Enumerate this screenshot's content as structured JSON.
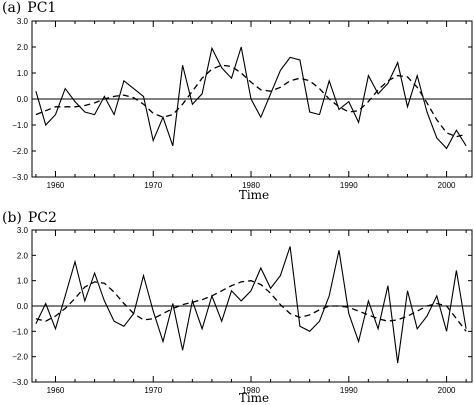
{
  "chart_data": [
    {
      "type": "line",
      "panel_label": "(a)",
      "title": "PC1",
      "xlabel": "Time",
      "ylabel": "",
      "xlim": [
        1957.6,
        2002.6
      ],
      "ylim": [
        -3.0,
        3.0
      ],
      "x_ticks": [
        1960,
        1970,
        1980,
        1990,
        2000
      ],
      "y_ticks": [
        -3.0,
        -2.0,
        -1.0,
        0.0,
        1.0,
        2.0,
        3.0
      ],
      "y_tick_labels": [
        "−3.0",
        "−2.0",
        "−1.0",
        "0.0",
        "1.0",
        "2.0",
        "3.0"
      ],
      "reference_line": 0.0,
      "series": [
        {
          "style": "solid",
          "x": [
            1958,
            1959,
            1960,
            1961,
            1962,
            1963,
            1964,
            1965,
            1966,
            1967,
            1968,
            1969,
            1970,
            1971,
            1972,
            1973,
            1974,
            1975,
            1976,
            1977,
            1978,
            1979,
            1980,
            1981,
            1982,
            1983,
            1984,
            1985,
            1986,
            1987,
            1988,
            1989,
            1990,
            1991,
            1992,
            1993,
            1994,
            1995,
            1996,
            1997,
            1998,
            1999,
            2000,
            2001,
            2002
          ],
          "values": [
            0.3,
            -1.0,
            -0.6,
            0.4,
            -0.1,
            -0.5,
            -0.6,
            0.1,
            -0.6,
            0.7,
            0.4,
            0.1,
            -1.6,
            -0.7,
            -1.8,
            1.3,
            -0.2,
            0.2,
            1.95,
            1.2,
            0.8,
            2.0,
            0.0,
            -0.7,
            0.2,
            1.1,
            1.6,
            1.5,
            -0.5,
            -0.6,
            0.7,
            -0.4,
            -0.1,
            -0.9,
            0.9,
            0.2,
            0.6,
            1.4,
            -0.3,
            0.9,
            -0.5,
            -1.5,
            -1.9,
            -1.2,
            -1.8
          ]
        },
        {
          "style": "dashed",
          "x": [
            1958,
            1959,
            1960,
            1961,
            1962,
            1963,
            1964,
            1965,
            1966,
            1967,
            1968,
            1969,
            1970,
            1971,
            1972,
            1973,
            1974,
            1975,
            1976,
            1977,
            1978,
            1979,
            1980,
            1981,
            1982,
            1983,
            1984,
            1985,
            1986,
            1987,
            1988,
            1989,
            1990,
            1991,
            1992,
            1993,
            1994,
            1995,
            1996,
            1997,
            1998,
            1999,
            2000,
            2001,
            2002
          ],
          "values": [
            -0.6,
            -0.45,
            -0.3,
            -0.3,
            -0.3,
            -0.25,
            -0.15,
            0.0,
            0.1,
            0.15,
            0.05,
            -0.2,
            -0.55,
            -0.7,
            -0.6,
            -0.2,
            0.3,
            0.8,
            1.15,
            1.3,
            1.25,
            1.0,
            0.65,
            0.35,
            0.3,
            0.45,
            0.7,
            0.8,
            0.7,
            0.4,
            0.0,
            -0.3,
            -0.5,
            -0.45,
            -0.1,
            0.35,
            0.7,
            0.9,
            0.85,
            0.45,
            -0.15,
            -0.8,
            -1.3,
            -1.45,
            -1.35
          ]
        }
      ]
    },
    {
      "type": "line",
      "panel_label": "(b)",
      "title": "PC2",
      "xlabel": "Time",
      "ylabel": "",
      "xlim": [
        1957.6,
        2002.6
      ],
      "ylim": [
        -3.0,
        3.0
      ],
      "x_ticks": [
        1960,
        1970,
        1980,
        1990,
        2000
      ],
      "y_ticks": [
        -3.0,
        -2.0,
        -1.0,
        0.0,
        1.0,
        2.0,
        3.0
      ],
      "y_tick_labels": [
        "−3.0",
        "−2.0",
        "−1.0",
        "0.0",
        "1.0",
        "2.0",
        "3.0"
      ],
      "reference_line": 0.0,
      "series": [
        {
          "style": "solid",
          "x": [
            1958,
            1959,
            1960,
            1961,
            1962,
            1963,
            1964,
            1965,
            1966,
            1967,
            1968,
            1969,
            1970,
            1971,
            1972,
            1973,
            1974,
            1975,
            1976,
            1977,
            1978,
            1979,
            1980,
            1981,
            1982,
            1983,
            1984,
            1985,
            1986,
            1987,
            1988,
            1989,
            1990,
            1991,
            1992,
            1993,
            1994,
            1995,
            1996,
            1997,
            1998,
            1999,
            2000,
            2001,
            2002
          ],
          "values": [
            -0.7,
            0.1,
            -0.9,
            0.4,
            1.75,
            0.2,
            1.3,
            0.2,
            -0.6,
            -0.8,
            -0.3,
            1.2,
            -0.2,
            -1.4,
            0.1,
            -1.75,
            0.2,
            -0.9,
            0.4,
            -0.6,
            0.6,
            0.2,
            0.6,
            1.5,
            0.7,
            1.2,
            2.35,
            -0.8,
            -1.0,
            -0.6,
            0.4,
            2.2,
            -0.3,
            -1.4,
            0.2,
            -0.9,
            0.8,
            -2.25,
            0.6,
            -0.9,
            -0.4,
            0.4,
            -1.0,
            1.4,
            -0.9
          ]
        },
        {
          "style": "dashed",
          "x": [
            1958,
            1959,
            1960,
            1961,
            1962,
            1963,
            1964,
            1965,
            1966,
            1967,
            1968,
            1969,
            1970,
            1971,
            1972,
            1973,
            1974,
            1975,
            1976,
            1977,
            1978,
            1979,
            1980,
            1981,
            1982,
            1983,
            1984,
            1985,
            1986,
            1987,
            1988,
            1989,
            1990,
            1991,
            1992,
            1993,
            1994,
            1995,
            1996,
            1997,
            1998,
            1999,
            2000,
            2001,
            2002
          ],
          "values": [
            -0.5,
            -0.6,
            -0.4,
            -0.1,
            0.3,
            0.75,
            0.95,
            0.9,
            0.55,
            0.1,
            -0.3,
            -0.55,
            -0.5,
            -0.3,
            -0.1,
            0.05,
            0.15,
            0.25,
            0.4,
            0.6,
            0.8,
            0.95,
            1.0,
            0.85,
            0.5,
            0.05,
            -0.3,
            -0.45,
            -0.35,
            -0.15,
            0.0,
            0.0,
            -0.05,
            -0.2,
            -0.35,
            -0.5,
            -0.6,
            -0.55,
            -0.4,
            -0.2,
            0.0,
            0.1,
            0.0,
            -0.5,
            -1.0
          ]
        }
      ]
    }
  ]
}
